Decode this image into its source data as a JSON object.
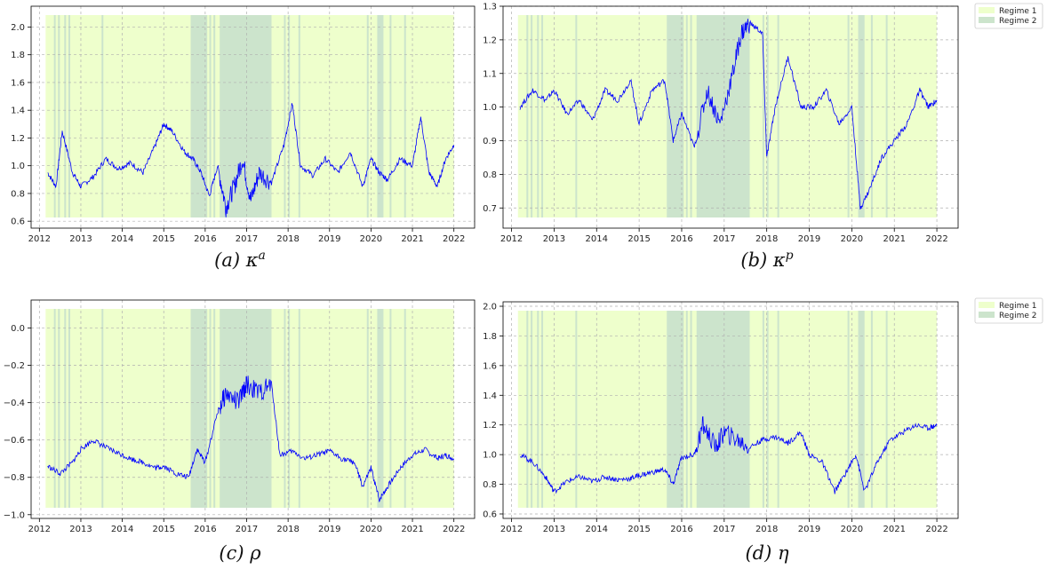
{
  "chart_data": [
    {
      "type": "line",
      "caption": "(a) κ",
      "caption_sup": "a",
      "x_ticks": [
        "2012",
        "2013",
        "2014",
        "2015",
        "2016",
        "2017",
        "2018",
        "2019",
        "2020",
        "2021",
        "2022"
      ],
      "y_ticks": [
        "0.6",
        "0.8",
        "1.0",
        "1.2",
        "1.4",
        "1.6",
        "1.8",
        "2.0"
      ],
      "ylim": [
        0.55,
        2.15
      ],
      "xlim": [
        2011.8,
        2022.5
      ],
      "grid": true,
      "series": [
        {
          "color": "#0000ff",
          "x": [
            2012.2,
            2012.4,
            2012.55,
            2012.8,
            2013.0,
            2013.3,
            2013.6,
            2013.9,
            2014.2,
            2014.5,
            2014.8,
            2015.0,
            2015.2,
            2015.5,
            2015.7,
            2015.9,
            2016.1,
            2016.3,
            2016.5,
            2016.7,
            2016.9,
            2017.1,
            2017.3,
            2017.6,
            2017.9,
            2018.1,
            2018.3,
            2018.6,
            2018.9,
            2019.2,
            2019.5,
            2019.8,
            2020.0,
            2020.2,
            2020.4,
            2020.7,
            2021.0,
            2021.2,
            2021.4,
            2021.6,
            2021.8,
            2022.0
          ],
          "y": [
            0.95,
            0.85,
            1.25,
            0.95,
            0.85,
            0.92,
            1.05,
            0.98,
            1.02,
            0.95,
            1.15,
            1.3,
            1.25,
            1.1,
            1.05,
            0.95,
            0.78,
            1.0,
            0.7,
            0.85,
            1.05,
            0.75,
            0.95,
            0.88,
            1.15,
            1.45,
            1.0,
            0.93,
            1.05,
            0.95,
            1.1,
            0.85,
            1.05,
            0.95,
            0.9,
            1.05,
            1.0,
            1.35,
            0.95,
            0.85,
            1.05,
            1.15
          ]
        }
      ],
      "regime2_bands": [
        [
          2015.65,
          2016.05
        ],
        [
          2016.35,
          2017.6
        ],
        [
          2020.15,
          2020.3
        ]
      ],
      "regime2_thin_x": [
        2012.35,
        2012.45,
        2012.6,
        2012.7,
        2013.5,
        2015.9,
        2016.1,
        2016.2,
        2017.9,
        2018.0,
        2018.25,
        2019.9,
        2020.45,
        2020.8
      ]
    },
    {
      "type": "line",
      "caption": "(b) κ",
      "caption_sup": "p",
      "x_ticks": [
        "2012",
        "2013",
        "2014",
        "2015",
        "2016",
        "2017",
        "2018",
        "2019",
        "2020",
        "2021",
        "2022"
      ],
      "y_ticks": [
        "0.7",
        "0.8",
        "0.9",
        "1.0",
        "1.1",
        "1.2",
        "1.3"
      ],
      "ylim": [
        0.64,
        1.3
      ],
      "xlim": [
        2011.8,
        2022.5
      ],
      "grid": true,
      "legend": {
        "position": "top-right",
        "entries": [
          "Regime 1",
          "Regime 2"
        ]
      },
      "series": [
        {
          "color": "#0000ff",
          "x": [
            2012.2,
            2012.5,
            2012.8,
            2013.0,
            2013.3,
            2013.6,
            2013.9,
            2014.2,
            2014.5,
            2014.8,
            2015.0,
            2015.3,
            2015.6,
            2015.8,
            2016.0,
            2016.3,
            2016.6,
            2016.9,
            2017.2,
            2017.4,
            2017.6,
            2017.9,
            2018.0,
            2018.2,
            2018.5,
            2018.8,
            2019.1,
            2019.4,
            2019.7,
            2020.0,
            2020.2,
            2020.4,
            2020.7,
            2021.0,
            2021.3,
            2021.6,
            2021.8,
            2022.0
          ],
          "y": [
            1.0,
            1.05,
            1.02,
            1.05,
            0.98,
            1.02,
            0.96,
            1.05,
            1.02,
            1.08,
            0.95,
            1.05,
            1.08,
            0.9,
            0.98,
            0.88,
            1.05,
            0.95,
            1.1,
            1.22,
            1.25,
            1.22,
            0.85,
            1.0,
            1.15,
            1.0,
            1.0,
            1.05,
            0.95,
            1.0,
            0.7,
            0.75,
            0.85,
            0.9,
            0.95,
            1.05,
            1.0,
            1.02
          ]
        }
      ],
      "regime2_bands": [
        [
          2015.65,
          2016.05
        ],
        [
          2016.35,
          2017.6
        ],
        [
          2020.15,
          2020.3
        ]
      ],
      "regime2_thin_x": [
        2012.35,
        2012.45,
        2012.6,
        2012.7,
        2013.5,
        2015.9,
        2016.1,
        2016.2,
        2017.9,
        2018.0,
        2018.25,
        2019.9,
        2020.45,
        2020.8
      ]
    },
    {
      "type": "line",
      "caption": "(c) ρ",
      "caption_sup": "",
      "x_ticks": [
        "2012",
        "2013",
        "2014",
        "2015",
        "2016",
        "2017",
        "2018",
        "2019",
        "2020",
        "2021",
        "2022"
      ],
      "y_ticks": [
        "−1.0",
        "−0.8",
        "−0.6",
        "−0.4",
        "−0.2",
        "0.0"
      ],
      "ylim": [
        -1.02,
        0.15
      ],
      "xlim": [
        2011.8,
        2022.5
      ],
      "grid": true,
      "series": [
        {
          "color": "#0000ff",
          "x": [
            2012.2,
            2012.5,
            2012.8,
            2013.0,
            2013.3,
            2013.6,
            2013.9,
            2014.2,
            2014.5,
            2014.8,
            2015.0,
            2015.3,
            2015.6,
            2015.8,
            2016.0,
            2016.3,
            2016.5,
            2016.8,
            2017.0,
            2017.3,
            2017.6,
            2017.8,
            2018.1,
            2018.4,
            2018.7,
            2019.0,
            2019.3,
            2019.6,
            2019.8,
            2020.0,
            2020.2,
            2020.4,
            2020.7,
            2021.0,
            2021.3,
            2021.6,
            2021.8,
            2022.0
          ],
          "y": [
            -0.74,
            -0.78,
            -0.72,
            -0.65,
            -0.6,
            -0.64,
            -0.67,
            -0.7,
            -0.72,
            -0.75,
            -0.74,
            -0.78,
            -0.8,
            -0.65,
            -0.72,
            -0.45,
            -0.35,
            -0.4,
            -0.3,
            -0.35,
            -0.3,
            -0.68,
            -0.66,
            -0.7,
            -0.68,
            -0.66,
            -0.7,
            -0.72,
            -0.85,
            -0.75,
            -0.92,
            -0.85,
            -0.75,
            -0.68,
            -0.65,
            -0.7,
            -0.68,
            -0.7
          ]
        }
      ],
      "regime2_bands": [
        [
          2015.65,
          2016.05
        ],
        [
          2016.35,
          2017.6
        ],
        [
          2020.15,
          2020.3
        ]
      ],
      "regime2_thin_x": [
        2012.35,
        2012.45,
        2012.6,
        2012.7,
        2013.5,
        2015.9,
        2016.1,
        2016.2,
        2017.9,
        2018.0,
        2018.25,
        2019.9,
        2020.45,
        2020.8
      ]
    },
    {
      "type": "line",
      "caption": "(d) η",
      "caption_sup": "",
      "x_ticks": [
        "2012",
        "2013",
        "2014",
        "2015",
        "2016",
        "2017",
        "2018",
        "2019",
        "2020",
        "2021",
        "2022"
      ],
      "y_ticks": [
        "0.6",
        "0.8",
        "1.0",
        "1.2",
        "1.4",
        "1.6",
        "1.8",
        "2.0"
      ],
      "ylim": [
        0.57,
        2.03
      ],
      "xlim": [
        2011.8,
        2022.5
      ],
      "grid": true,
      "legend": {
        "position": "top-right",
        "entries": [
          "Regime 1",
          "Regime 2"
        ]
      },
      "series": [
        {
          "color": "#0000ff",
          "x": [
            2012.2,
            2012.5,
            2012.8,
            2013.0,
            2013.3,
            2013.6,
            2013.9,
            2014.2,
            2014.5,
            2014.8,
            2015.0,
            2015.3,
            2015.6,
            2015.8,
            2016.0,
            2016.3,
            2016.5,
            2016.8,
            2017.0,
            2017.3,
            2017.6,
            2017.9,
            2018.2,
            2018.5,
            2018.8,
            2019.0,
            2019.3,
            2019.6,
            2019.9,
            2020.1,
            2020.3,
            2020.6,
            2020.9,
            2021.2,
            2021.5,
            2021.8,
            2022.0
          ],
          "y": [
            1.0,
            0.95,
            0.85,
            0.75,
            0.82,
            0.85,
            0.82,
            0.85,
            0.83,
            0.84,
            0.86,
            0.88,
            0.9,
            0.8,
            0.98,
            1.0,
            1.2,
            1.05,
            1.15,
            1.1,
            1.05,
            1.1,
            1.12,
            1.08,
            1.15,
            1.0,
            0.95,
            0.75,
            0.9,
            1.0,
            0.75,
            0.95,
            1.1,
            1.15,
            1.2,
            1.18,
            1.2
          ]
        }
      ],
      "regime2_bands": [
        [
          2015.65,
          2016.05
        ],
        [
          2016.35,
          2017.6
        ],
        [
          2020.15,
          2020.3
        ]
      ],
      "regime2_thin_x": [
        2012.35,
        2012.45,
        2012.6,
        2012.7,
        2013.5,
        2015.9,
        2016.1,
        2016.2,
        2017.9,
        2018.0,
        2018.25,
        2019.9,
        2020.45,
        2020.8
      ]
    }
  ],
  "colors": {
    "regime1": "#eeffcc",
    "regime2": "#cce4cc",
    "line": "#0000ff",
    "grid": "#b0b0b0"
  }
}
